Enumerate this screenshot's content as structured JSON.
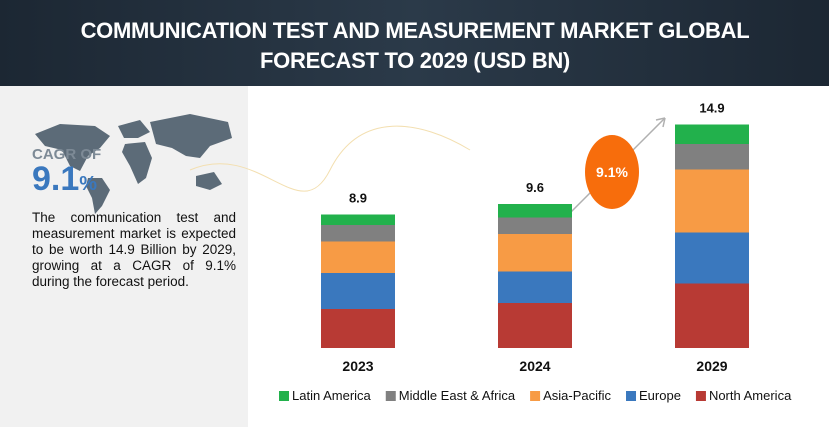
{
  "title": "COMMUNICATION TEST AND MEASUREMENT MARKET GLOBAL FORECAST TO 2029 (USD BN)",
  "cagr": {
    "label": "CAGR OF",
    "value": 9.1,
    "unit": "%"
  },
  "description": "The communication test and measurement market is expected to be worth 14.9 Billion by 2029, growing at a CAGR of 9.1% during the forecast period.",
  "chart_data": {
    "type": "stacked-bar",
    "categories": [
      "2023",
      "2024",
      "2029"
    ],
    "totals": [
      8.9,
      9.6,
      14.9
    ],
    "bubble": "9.1%",
    "series": [
      {
        "name": "North America",
        "color": "#b83a34",
        "values": [
          2.6,
          3.0,
          4.3
        ]
      },
      {
        "name": "Europe",
        "color": "#3a78be",
        "values": [
          2.4,
          2.1,
          3.4
        ]
      },
      {
        "name": "Asia-Pacific",
        "color": "#f79b45",
        "values": [
          2.1,
          2.5,
          4.2
        ]
      },
      {
        "name": "Middle East & Africa",
        "color": "#808080",
        "values": [
          1.1,
          1.1,
          1.7
        ]
      },
      {
        "name": "Latin America",
        "color": "#22b14c",
        "values": [
          0.7,
          0.9,
          1.3
        ]
      }
    ]
  }
}
